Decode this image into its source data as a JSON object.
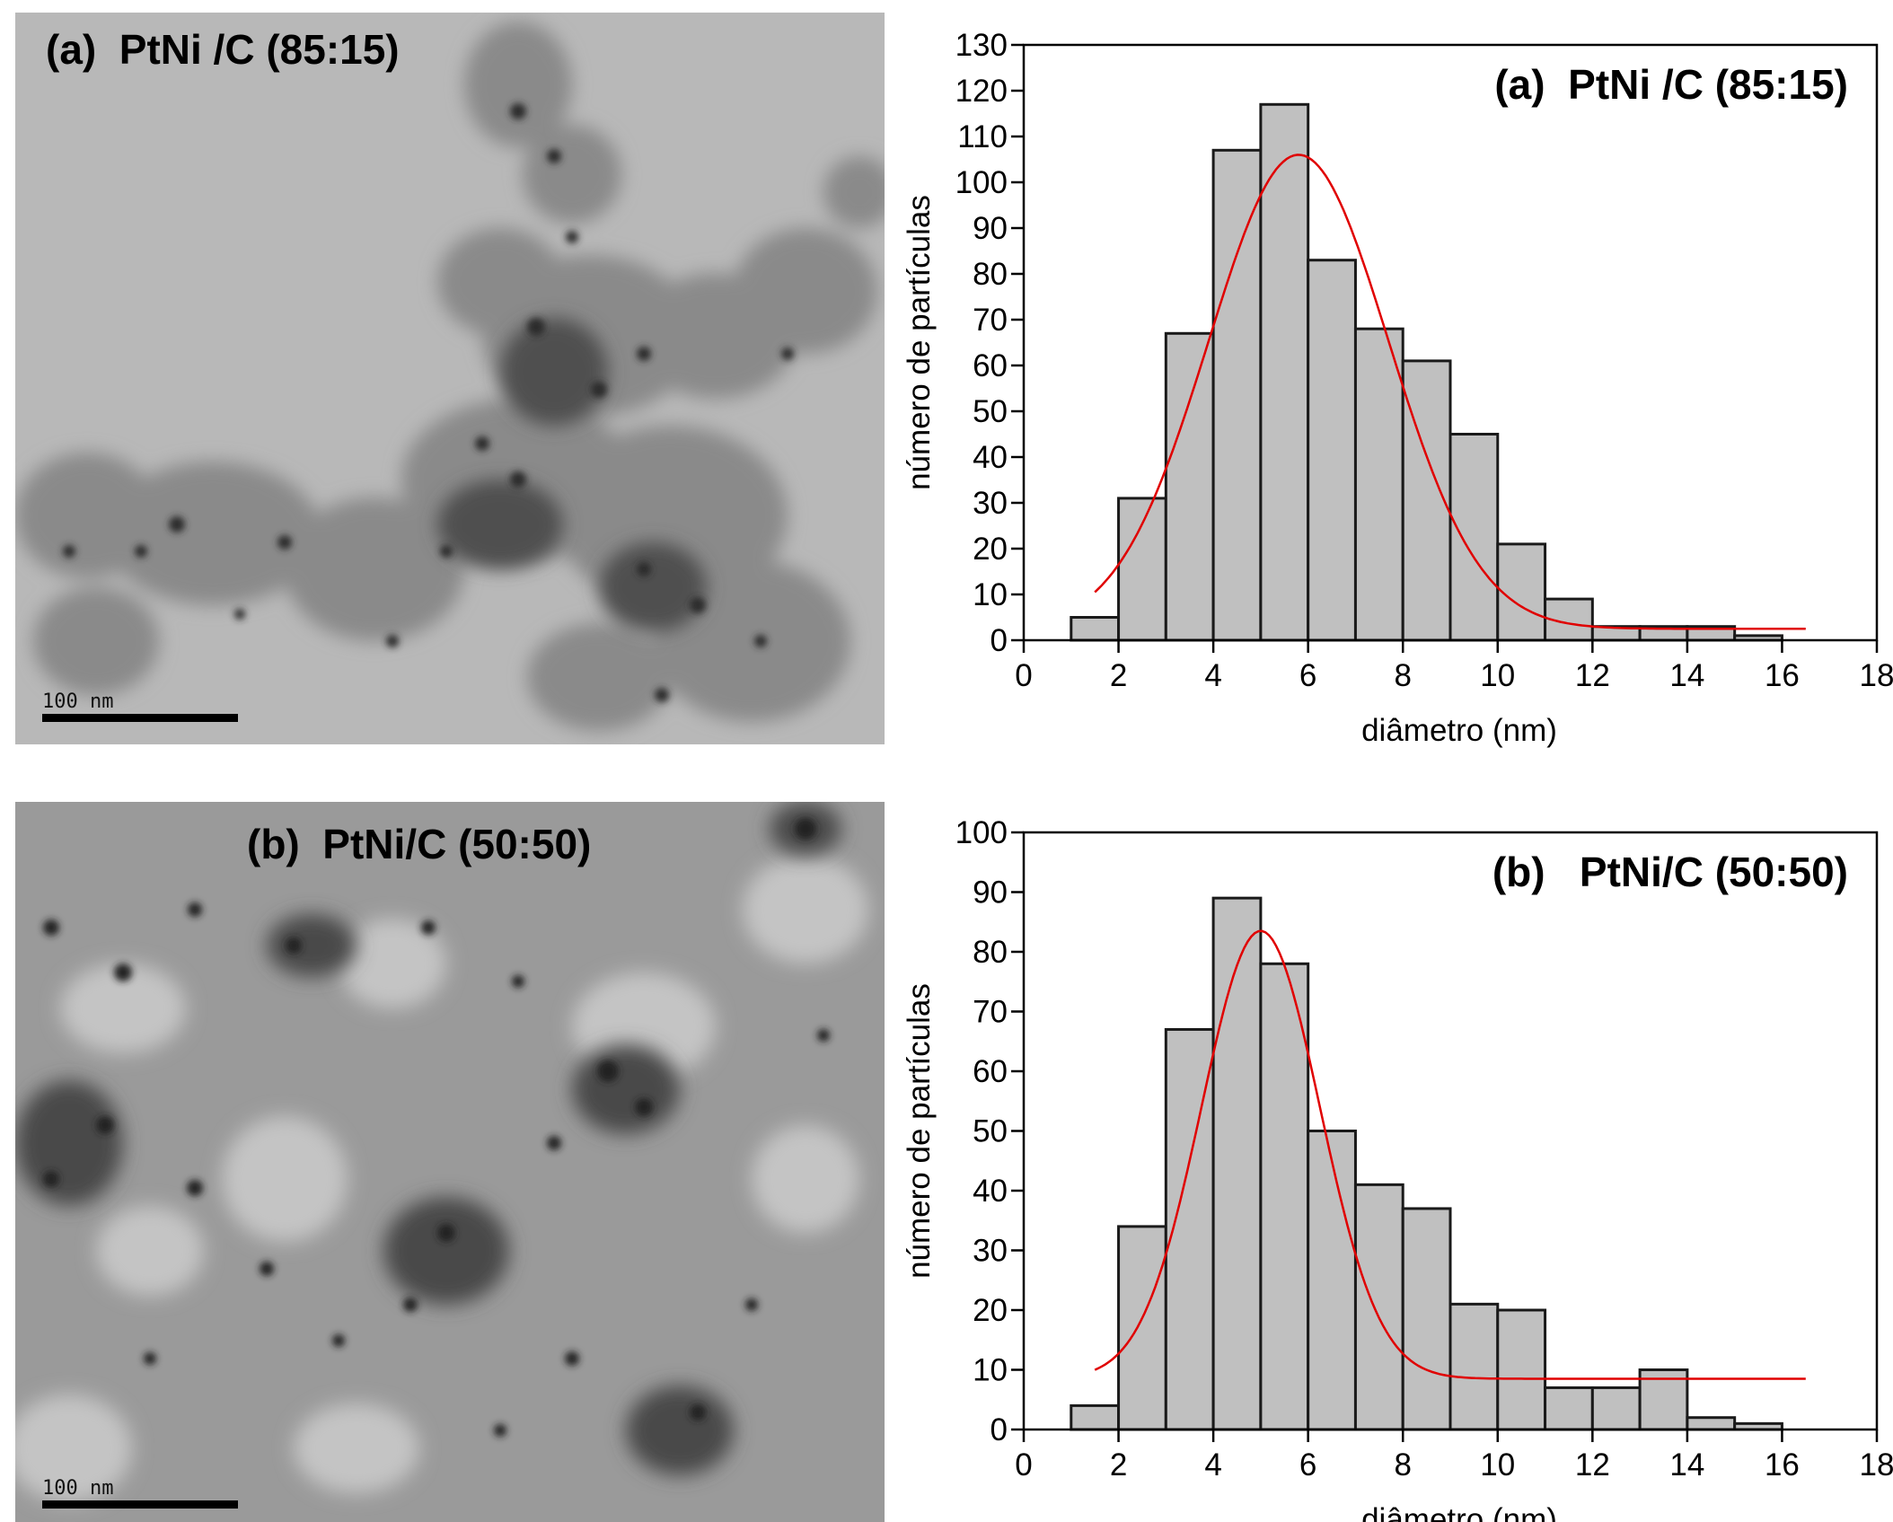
{
  "panels": [
    {
      "tem": {
        "label": "(a)  PtNi /C (85:15)",
        "scale_text": "100 nm"
      },
      "chart_data": {
        "type": "bar",
        "title": "(a)  PtNi /C (85:15)",
        "xlabel": "diâmetro (nm)",
        "ylabel": "número de partículas",
        "xlim": [
          0,
          18
        ],
        "ylim": [
          0,
          130
        ],
        "xticks": [
          0,
          2,
          4,
          6,
          8,
          10,
          12,
          14,
          16,
          18
        ],
        "yticks": [
          0,
          10,
          20,
          30,
          40,
          50,
          60,
          70,
          80,
          90,
          100,
          110,
          120,
          130
        ],
        "bin_width": 1,
        "bins": [
          1,
          2,
          3,
          4,
          5,
          6,
          7,
          8,
          9,
          10,
          11,
          12,
          13,
          14,
          15
        ],
        "values": [
          5,
          31,
          67,
          107,
          117,
          83,
          68,
          61,
          45,
          21,
          9,
          3,
          3,
          3,
          1
        ],
        "fit": {
          "type": "gaussian",
          "x_range": [
            1.5,
            16.5
          ],
          "y0": 2.5,
          "amplitude": 103.5,
          "center": 5.8,
          "sigma": 1.9,
          "color": "#e00000"
        },
        "bar_color": "#c0c0c0"
      }
    },
    {
      "tem": {
        "label": "(b)  PtNi/C (50:50)",
        "scale_text": "100 nm"
      },
      "chart_data": {
        "type": "bar",
        "title": "(b)   PtNi/C (50:50)",
        "xlabel": "diâmetro (nm)",
        "ylabel": "número de partículas",
        "xlim": [
          0,
          18
        ],
        "ylim": [
          0,
          100
        ],
        "xticks": [
          0,
          2,
          4,
          6,
          8,
          10,
          12,
          14,
          16,
          18
        ],
        "yticks": [
          0,
          10,
          20,
          30,
          40,
          50,
          60,
          70,
          80,
          90,
          100
        ],
        "bin_width": 1,
        "bins": [
          1,
          2,
          3,
          4,
          5,
          6,
          7,
          8,
          9,
          10,
          11,
          12,
          13,
          14,
          15
        ],
        "values": [
          4,
          34,
          67,
          89,
          78,
          50,
          41,
          37,
          21,
          20,
          7,
          7,
          10,
          2,
          1
        ],
        "fit": {
          "type": "gaussian",
          "x_range": [
            1.5,
            16.5
          ],
          "y0": 8.5,
          "amplitude": 75,
          "center": 5.0,
          "sigma": 1.25,
          "color": "#e00000"
        },
        "bar_color": "#c0c0c0"
      }
    }
  ]
}
